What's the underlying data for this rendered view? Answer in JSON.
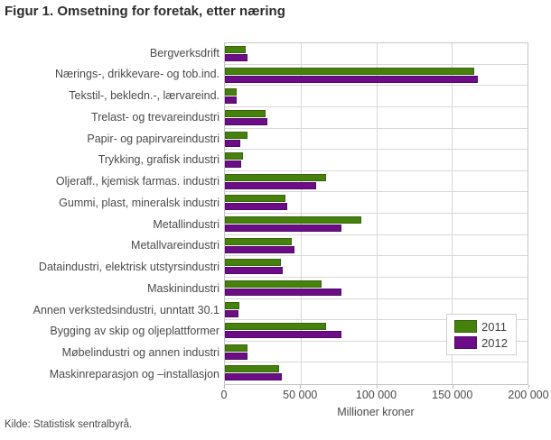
{
  "title": "Figur 1. Omsetning for foretak, etter næring",
  "source": "Kilde: Statistisk sentralbyrå.",
  "chart_data": {
    "type": "bar",
    "orientation": "horizontal",
    "title": "Figur 1. Omsetning for foretak, etter næring",
    "xlabel": "Millioner kroner",
    "xlim": [
      0,
      200000
    ],
    "xticks": [
      0,
      50000,
      100000,
      150000,
      200000
    ],
    "xtick_labels": [
      "0",
      "50 000",
      "100 000",
      "150 000",
      "200 000"
    ],
    "grid": true,
    "legend_position": "inside-lower-right",
    "categories": [
      "Bergverksdrift",
      "Nærings-, drikkevare- og tob.ind.",
      "Tekstil-, bekledn.-, lærvareind.",
      "Trelast- og trevareindustri",
      "Papir- og papirvareindustri",
      "Trykking, grafisk industri",
      "Oljeraff., kjemisk farmas. industri",
      "Gummi, plast, mineralsk industri",
      "Metallindustri",
      "Metallvareindustri",
      "Dataindustri, elektrisk utstyrsindustri",
      "Maskinindustri",
      "Annen verkstedsindustri, unntatt 30.1",
      "Bygging av skip og oljeplattformer",
      "Møbelindustri og annen industri",
      "Maskinreparasjon og –installasjon"
    ],
    "series": [
      {
        "name": "2011",
        "color": "#46810c",
        "border_color": "#37650a",
        "values": [
          14000,
          165000,
          8000,
          27000,
          15000,
          12000,
          67000,
          40000,
          90000,
          44000,
          37000,
          64000,
          9500,
          67000,
          15000,
          36000
        ]
      },
      {
        "name": "2012",
        "color": "#6c0d87",
        "border_color": "#520a66",
        "values": [
          15000,
          167000,
          7700,
          28000,
          10000,
          11000,
          60000,
          41000,
          77000,
          46000,
          38000,
          77000,
          9200,
          77000,
          15000,
          37500
        ]
      }
    ]
  }
}
